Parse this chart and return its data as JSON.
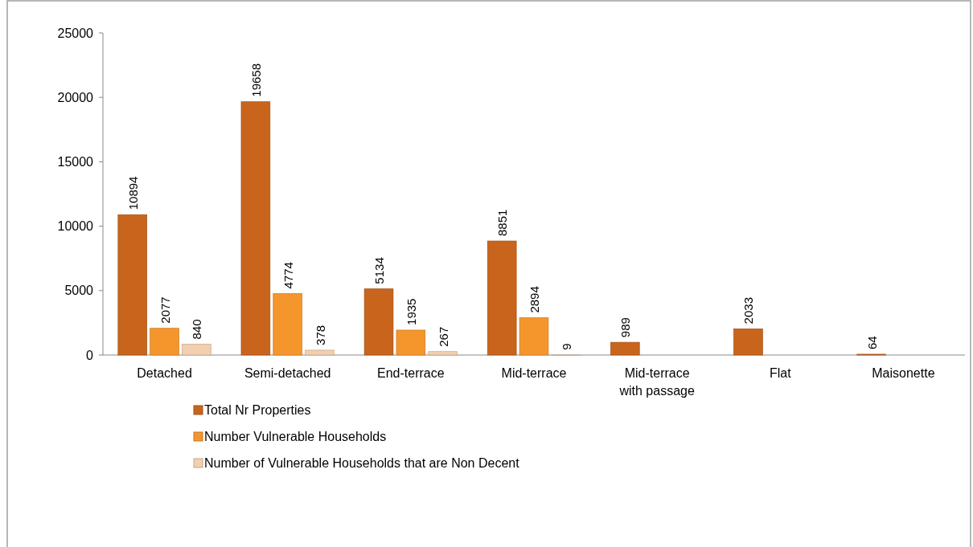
{
  "chart_data": {
    "type": "bar",
    "categories": [
      "Detached",
      "Semi-detached",
      "End-terrace",
      "Mid-terrace",
      "Mid-terrace with passage",
      "Flat",
      "Maisonette"
    ],
    "series": [
      {
        "name": "Total Nr Properties",
        "color": "#c8641c",
        "values": [
          10894,
          19658,
          5134,
          8851,
          989,
          2033,
          64
        ]
      },
      {
        "name": "Number Vulnerable Households",
        "color": "#f5962c",
        "values": [
          2077,
          4774,
          1935,
          2894,
          null,
          null,
          null
        ]
      },
      {
        "name": "Number of Vulnerable Households that are Non Decent",
        "color": "#f2cfae",
        "values": [
          840,
          378,
          267,
          9,
          null,
          null,
          null
        ]
      }
    ],
    "ylim": [
      0,
      25000
    ],
    "yticks": [
      0,
      5000,
      10000,
      15000,
      20000,
      25000
    ],
    "grid": false,
    "legend": "bottom",
    "data_labels": true
  }
}
